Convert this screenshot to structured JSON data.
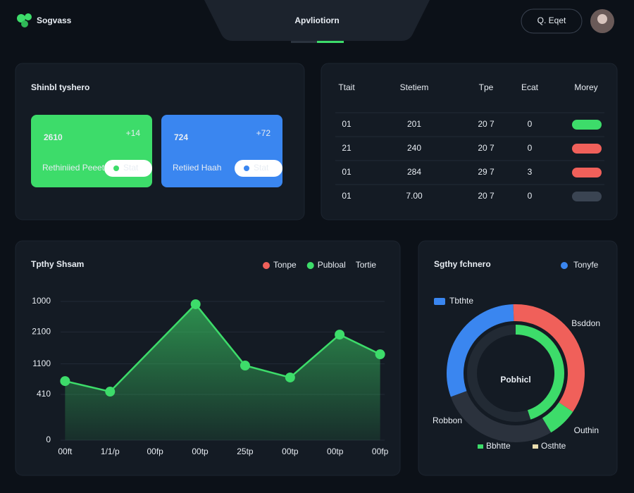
{
  "header": {
    "brand": "Sogvass",
    "tab": "Apvliotiorn",
    "search": "Q. Eqet"
  },
  "stats": {
    "title": "Shinbl tyshero",
    "tiles": [
      {
        "value": "2610",
        "delta": "+14",
        "label": "Rethiniied Peeet",
        "button": "Stat",
        "color": "#3ddc6a"
      },
      {
        "value": "724",
        "delta": "+72",
        "label": "Retiied Haah",
        "button": "Stat",
        "color": "#3a86f0"
      }
    ]
  },
  "table": {
    "headers": [
      "Ttait",
      "Stetiem",
      "Tpe",
      "Ecat",
      "Morey"
    ],
    "rows": [
      {
        "cells": [
          "01",
          "201",
          "20 7",
          "0"
        ],
        "colors": [
          "#ffffff",
          "#ffffff",
          "#ffffff",
          "#3ddc6a"
        ],
        "pill": "#3ddc6a"
      },
      {
        "cells": [
          "21",
          "240",
          "20 7",
          "0"
        ],
        "colors": [
          "#ffffff",
          "#ffffff",
          "#ffffff",
          "#3ddc6a"
        ],
        "pill": "#f0605a"
      },
      {
        "cells": [
          "01",
          "284",
          "29 7",
          "3"
        ],
        "colors": [
          "#3ddc6a",
          "#3ddc6a",
          "#ffffff",
          "#3ddc6a"
        ],
        "pill": "#f0605a"
      },
      {
        "cells": [
          "01",
          "7.00",
          "20 7",
          "0"
        ],
        "colors": [
          "#f0605a",
          "#3ddc6a",
          "#ffffff",
          "#3ddc6a"
        ],
        "pill": "#3a4452"
      }
    ]
  },
  "chart_data": [
    {
      "type": "area",
      "title": "Tpthy Shsam",
      "legend": [
        {
          "name": "Tonpe",
          "color": "#f0605a"
        },
        {
          "name": "Publoal",
          "color": "#3ddc6a"
        },
        {
          "name": "Tortie",
          "color": null
        }
      ],
      "x": [
        0,
        1,
        2.9,
        4,
        5,
        6.1,
        7
      ],
      "series": [
        {
          "name": "Publoal",
          "color": "#3ddc6a",
          "values": [
            426,
            350,
            980,
            538,
            452,
            761,
            619
          ]
        }
      ],
      "xlim": [
        -0.1,
        7.1
      ],
      "xticks": [
        {
          "value": 0,
          "label": "00ft"
        },
        {
          "value": 1,
          "label": "1/1/p"
        },
        {
          "value": 2,
          "label": "00fp"
        },
        {
          "value": 3,
          "label": "00tp"
        },
        {
          "value": 4,
          "label": "25tp"
        },
        {
          "value": 5,
          "label": "00tp"
        },
        {
          "value": 6,
          "label": "00tp"
        },
        {
          "value": 7,
          "label": "00fp"
        }
      ],
      "ylim": [
        0,
        1000
      ],
      "yticks": [
        0,
        {
          "value": 330,
          "label": "410"
        },
        {
          "value": 550,
          "label": "1100"
        },
        {
          "value": 780,
          "label": "2100"
        },
        1000
      ],
      "grid": true
    },
    {
      "type": "donut",
      "title": "Sgthy fchnero",
      "center_label": "Pobhicl",
      "legend": [
        {
          "name": "Tonyfe",
          "color": "#3a86f0"
        }
      ],
      "categories": [
        "Tbthte",
        "Bsddon",
        "Outhin",
        "Robbon"
      ],
      "values": [
        30,
        35,
        7,
        28
      ],
      "colors": [
        "#3a86f0",
        "#f0605a",
        "#3ddc6a",
        "#2b323d"
      ],
      "inner": {
        "value": 45,
        "color": "#3ddc6a"
      },
      "bottom_legend": [
        {
          "name": "Bbhtte",
          "color": "#3ddc6a"
        },
        {
          "name": "Osthte",
          "color": "#e8dcae"
        }
      ]
    }
  ]
}
